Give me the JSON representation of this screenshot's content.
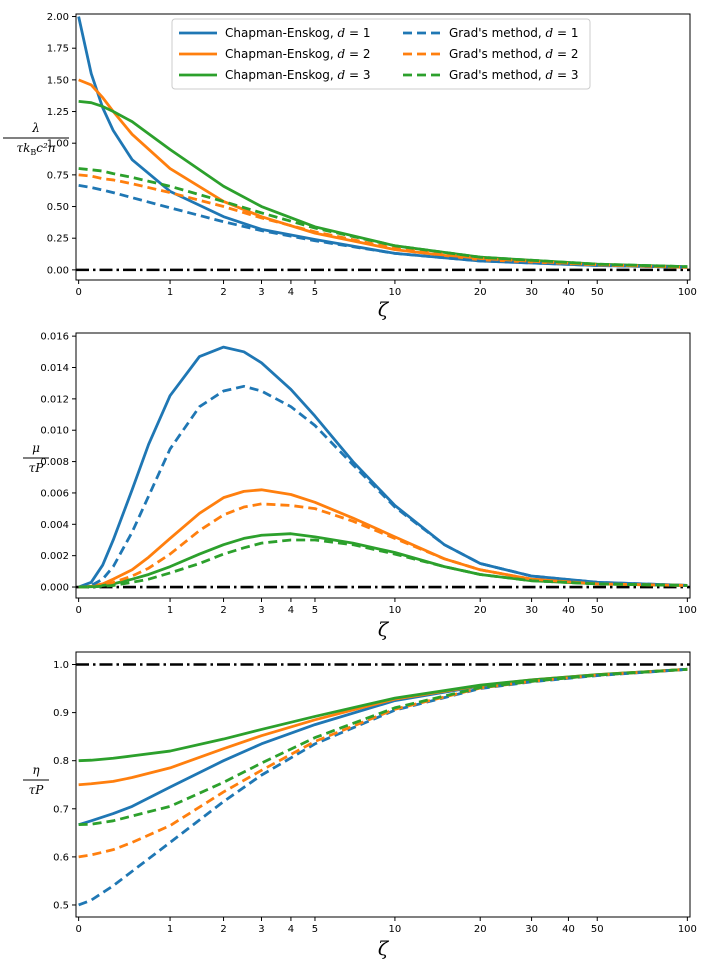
{
  "chart_data": [
    {
      "type": "line",
      "id": "lambda",
      "xlabel": "ζ",
      "ylabel": {
        "num": "λ",
        "den": "τk",
        "den_sub": "B",
        "den_rest": "c²n"
      },
      "ylim": [
        -0.08,
        2.02
      ],
      "yticks": [
        0.0,
        0.25,
        0.5,
        0.75,
        1.0,
        1.25,
        1.5,
        1.75,
        2.0
      ],
      "ytick_labels": [
        "0.00",
        "0.25",
        "0.50",
        "0.75",
        "1.00",
        "1.25",
        "1.50",
        "1.75",
        "2.00"
      ],
      "xticks": [
        0,
        1,
        2,
        3,
        4,
        5,
        10,
        20,
        30,
        40,
        50,
        100
      ],
      "xtick_labels": [
        "0",
        "1",
        "2",
        "3",
        "4",
        "5",
        "10",
        "20",
        "30",
        "40",
        "50",
        "100"
      ],
      "x": [
        0,
        0.1,
        0.2,
        0.3,
        0.5,
        1,
        2,
        3,
        5,
        10,
        20,
        50,
        100
      ],
      "reference": {
        "value": 1e-09,
        "style": "dashdot",
        "color": "#000000",
        "y": 0.0
      },
      "series": [
        {
          "name": "Chapman-Enskog",
          "d": 1,
          "style": "solid",
          "color": "#1f77b4",
          "values": [
            2.0,
            1.55,
            1.28,
            1.1,
            0.87,
            0.62,
            0.42,
            0.32,
            0.24,
            0.13,
            0.07,
            0.035,
            0.02
          ]
        },
        {
          "name": "Chapman-Enskog",
          "d": 2,
          "style": "solid",
          "color": "#ff7f0e",
          "values": [
            1.5,
            1.46,
            1.36,
            1.25,
            1.07,
            0.8,
            0.54,
            0.42,
            0.29,
            0.16,
            0.08,
            0.04,
            0.02
          ]
        },
        {
          "name": "Chapman-Enskog",
          "d": 3,
          "style": "solid",
          "color": "#2ca02c",
          "values": [
            1.33,
            1.32,
            1.29,
            1.25,
            1.17,
            0.95,
            0.66,
            0.5,
            0.34,
            0.19,
            0.1,
            0.045,
            0.025
          ]
        },
        {
          "name": "Grad's method",
          "d": 1,
          "style": "dashed",
          "color": "#1f77b4",
          "values": [
            0.667,
            0.65,
            0.63,
            0.61,
            0.57,
            0.49,
            0.38,
            0.31,
            0.23,
            0.13,
            0.07,
            0.035,
            0.02
          ]
        },
        {
          "name": "Grad's method",
          "d": 2,
          "style": "dashed",
          "color": "#ff7f0e",
          "values": [
            0.75,
            0.74,
            0.72,
            0.71,
            0.68,
            0.61,
            0.5,
            0.41,
            0.3,
            0.17,
            0.09,
            0.04,
            0.02
          ]
        },
        {
          "name": "Grad's method",
          "d": 3,
          "style": "dashed",
          "color": "#2ca02c",
          "values": [
            0.8,
            0.79,
            0.78,
            0.76,
            0.73,
            0.66,
            0.54,
            0.45,
            0.33,
            0.19,
            0.1,
            0.045,
            0.025
          ]
        }
      ],
      "legend": {
        "placement": "top-center",
        "ncol": 2
      }
    },
    {
      "type": "line",
      "id": "mu",
      "xlabel": "ζ",
      "ylabel": {
        "num": "μ",
        "den": "τP"
      },
      "ylim": [
        -0.0007,
        0.0162
      ],
      "yticks": [
        0.0,
        0.002,
        0.004,
        0.006,
        0.008,
        0.01,
        0.012,
        0.014,
        0.016
      ],
      "ytick_labels": [
        "0.000",
        "0.002",
        "0.004",
        "0.006",
        "0.008",
        "0.010",
        "0.012",
        "0.014",
        "0.016"
      ],
      "xticks": [
        0,
        1,
        2,
        3,
        4,
        5,
        10,
        20,
        30,
        40,
        50,
        100
      ],
      "xtick_labels": [
        "0",
        "1",
        "2",
        "3",
        "4",
        "5",
        "10",
        "20",
        "30",
        "40",
        "50",
        "100"
      ],
      "x": [
        0,
        0.1,
        0.2,
        0.3,
        0.5,
        0.7,
        1,
        1.5,
        2,
        2.5,
        3,
        4,
        5,
        7,
        10,
        15,
        20,
        30,
        50,
        100
      ],
      "reference": {
        "style": "dashdot",
        "color": "#000000",
        "y": 0.0
      },
      "series": [
        {
          "name": "Chapman-Enskog",
          "d": 1,
          "style": "solid",
          "color": "#1f77b4",
          "values": [
            0,
            0.0003,
            0.0014,
            0.003,
            0.0062,
            0.0091,
            0.0122,
            0.0147,
            0.0153,
            0.015,
            0.0143,
            0.0126,
            0.0109,
            0.008,
            0.0052,
            0.0027,
            0.0015,
            0.0007,
            0.0003,
            0.0001
          ]
        },
        {
          "name": "Chapman-Enskog",
          "d": 2,
          "style": "solid",
          "color": "#ff7f0e",
          "values": [
            0,
            5e-05,
            0.0002,
            0.0005,
            0.0011,
            0.0019,
            0.0031,
            0.0047,
            0.0057,
            0.0061,
            0.0062,
            0.0059,
            0.0054,
            0.0044,
            0.0032,
            0.0018,
            0.0011,
            0.0005,
            0.0002,
            0.0001
          ]
        },
        {
          "name": "Chapman-Enskog",
          "d": 3,
          "style": "solid",
          "color": "#2ca02c",
          "values": [
            0,
            2e-05,
            0.0001,
            0.0002,
            0.0005,
            0.0008,
            0.0013,
            0.0021,
            0.0027,
            0.0031,
            0.0033,
            0.0034,
            0.0032,
            0.0028,
            0.0022,
            0.0013,
            0.0008,
            0.0004,
            0.0002,
            0.0001
          ]
        },
        {
          "name": "Grad's method",
          "d": 1,
          "style": "dashed",
          "color": "#1f77b4",
          "values": [
            0,
            0.0001,
            0.0005,
            0.0013,
            0.0035,
            0.0058,
            0.0088,
            0.0115,
            0.0125,
            0.0128,
            0.0125,
            0.0115,
            0.0103,
            0.0078,
            0.0051,
            0.0027,
            0.0015,
            0.0007,
            0.0003,
            0.0001
          ]
        },
        {
          "name": "Grad's method",
          "d": 2,
          "style": "dashed",
          "color": "#ff7f0e",
          "values": [
            0,
            2e-05,
            0.0001,
            0.0003,
            0.0007,
            0.0012,
            0.0021,
            0.0036,
            0.0046,
            0.0051,
            0.0053,
            0.0052,
            0.005,
            0.0042,
            0.0031,
            0.0018,
            0.0011,
            0.0005,
            0.0002,
            0.0001
          ]
        },
        {
          "name": "Grad's method",
          "d": 3,
          "style": "dashed",
          "color": "#2ca02c",
          "values": [
            0,
            1e-05,
            5e-05,
            0.0001,
            0.0003,
            0.0005,
            0.0009,
            0.0015,
            0.0021,
            0.0025,
            0.0028,
            0.003,
            0.003,
            0.0027,
            0.0021,
            0.0013,
            0.0008,
            0.0004,
            0.0002,
            0.0001
          ]
        }
      ]
    },
    {
      "type": "line",
      "id": "eta",
      "xlabel": "ζ",
      "ylabel": {
        "num": "η",
        "den": "τP"
      },
      "ylim": [
        0.475,
        1.026
      ],
      "yticks": [
        0.5,
        0.6,
        0.7,
        0.8,
        0.9,
        1.0
      ],
      "ytick_labels": [
        "0.5",
        "0.6",
        "0.7",
        "0.8",
        "0.9",
        "1.0"
      ],
      "xticks": [
        0,
        1,
        2,
        3,
        4,
        5,
        10,
        20,
        30,
        40,
        50,
        100
      ],
      "xtick_labels": [
        "0",
        "1",
        "2",
        "3",
        "4",
        "5",
        "10",
        "20",
        "30",
        "40",
        "50",
        "100"
      ],
      "x": [
        0,
        0.1,
        0.3,
        0.5,
        1,
        2,
        3,
        5,
        10,
        20,
        30,
        50,
        100
      ],
      "reference": {
        "style": "dashdot",
        "color": "#000000",
        "y": 1.0
      },
      "series": [
        {
          "name": "Chapman-Enskog",
          "d": 1,
          "style": "solid",
          "color": "#1f77b4",
          "values": [
            0.667,
            0.675,
            0.69,
            0.705,
            0.745,
            0.8,
            0.835,
            0.875,
            0.925,
            0.955,
            0.967,
            0.978,
            0.99
          ]
        },
        {
          "name": "Chapman-Enskog",
          "d": 2,
          "style": "solid",
          "color": "#ff7f0e",
          "values": [
            0.75,
            0.752,
            0.757,
            0.765,
            0.785,
            0.825,
            0.852,
            0.885,
            0.928,
            0.956,
            0.968,
            0.979,
            0.99
          ]
        },
        {
          "name": "Chapman-Enskog",
          "d": 3,
          "style": "solid",
          "color": "#2ca02c",
          "values": [
            0.8,
            0.801,
            0.805,
            0.81,
            0.82,
            0.845,
            0.865,
            0.892,
            0.93,
            0.957,
            0.968,
            0.979,
            0.99
          ]
        },
        {
          "name": "Grad's method",
          "d": 1,
          "style": "dashed",
          "color": "#1f77b4",
          "values": [
            0.5,
            0.51,
            0.54,
            0.57,
            0.63,
            0.715,
            0.77,
            0.835,
            0.905,
            0.95,
            0.964,
            0.977,
            0.99
          ]
        },
        {
          "name": "Grad's method",
          "d": 2,
          "style": "dashed",
          "color": "#ff7f0e",
          "values": [
            0.6,
            0.604,
            0.615,
            0.63,
            0.665,
            0.735,
            0.78,
            0.84,
            0.907,
            0.951,
            0.965,
            0.978,
            0.99
          ]
        },
        {
          "name": "Grad's method",
          "d": 3,
          "style": "dashed",
          "color": "#2ca02c",
          "values": [
            0.667,
            0.668,
            0.675,
            0.685,
            0.705,
            0.755,
            0.795,
            0.848,
            0.91,
            0.952,
            0.965,
            0.978,
            0.99
          ]
        }
      ]
    }
  ]
}
